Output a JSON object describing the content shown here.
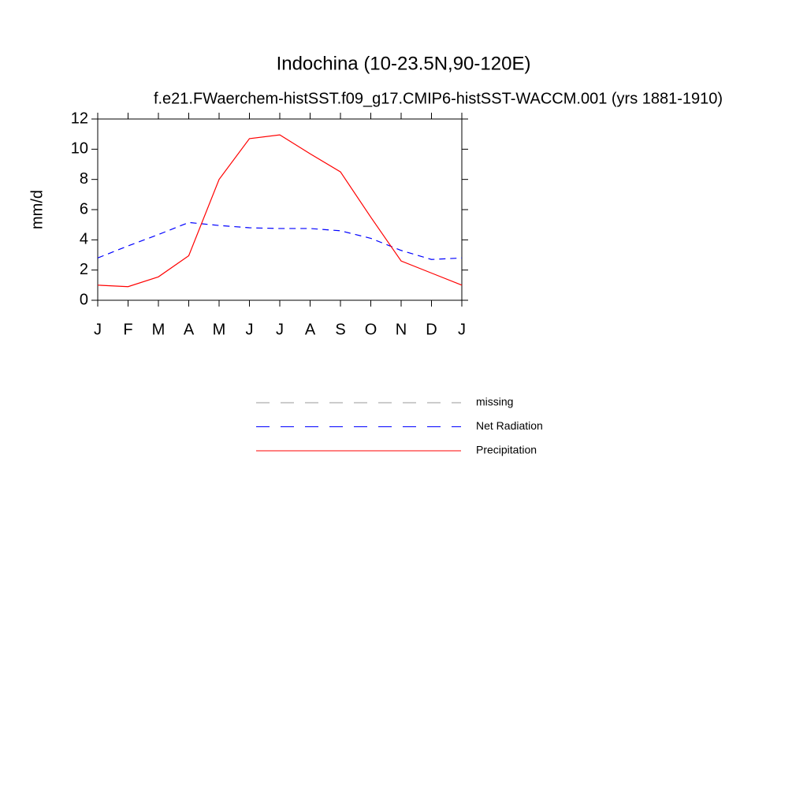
{
  "chart_data": {
    "type": "line",
    "title": "Indochina (10-23.5N,90-120E)",
    "subtitle": "f.e21.FWaerchem-histSST.f09_g17.CMIP6-histSST-WACCM.001 (yrs 1881-1910)",
    "y_label": "mm/d",
    "categories": [
      "J",
      "F",
      "M",
      "A",
      "M",
      "J",
      "J",
      "A",
      "S",
      "O",
      "N",
      "D",
      "J"
    ],
    "ylim": [
      0,
      12
    ],
    "yticks": [
      0,
      2,
      4,
      6,
      8,
      10,
      12
    ],
    "series": [
      {
        "name": "missing",
        "color": "#999999",
        "dash": true,
        "values": [
          null,
          null,
          null,
          null,
          null,
          null,
          null,
          null,
          null,
          null,
          null,
          null,
          null
        ]
      },
      {
        "name": "Net Radiation",
        "color": "#0000ff",
        "dash": true,
        "values": [
          2.8,
          3.6,
          4.35,
          5.15,
          4.95,
          4.8,
          4.75,
          4.75,
          4.6,
          4.1,
          3.3,
          2.7,
          2.8
        ]
      },
      {
        "name": "Precipitation",
        "color": "#ff0000",
        "dash": false,
        "values": [
          1.0,
          0.9,
          1.55,
          2.95,
          8.0,
          10.7,
          10.95,
          9.7,
          8.5,
          5.5,
          2.6,
          1.8,
          1.0
        ]
      }
    ]
  }
}
